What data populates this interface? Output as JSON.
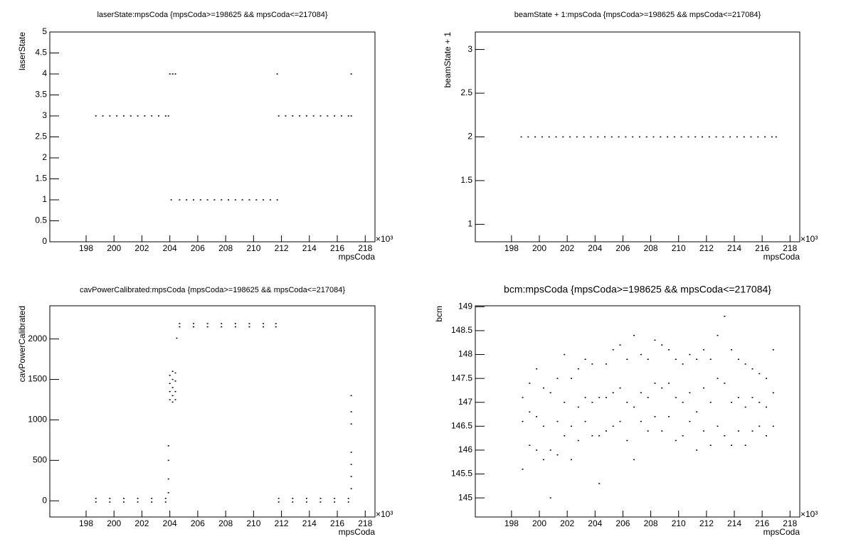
{
  "chart_data": [
    {
      "type": "scatter",
      "title": "laserState:mpsCoda {mpsCoda>=198625 && mpsCoda<=217084}",
      "x_label": "mpsCoda",
      "y_label": "laserState",
      "x_exponent_label": "×10³",
      "color": "#000000",
      "xlim": [
        195.4,
        218.7
      ],
      "ylim": [
        0,
        5
      ],
      "xticks": [
        198,
        200,
        202,
        204,
        206,
        208,
        210,
        212,
        214,
        216,
        218
      ],
      "yticks": [
        0,
        0.5,
        1,
        1.5,
        2,
        2.5,
        3,
        3.5,
        4,
        4.5,
        5
      ],
      "x": [
        198.7,
        199.2,
        199.7,
        200.2,
        200.7,
        201.2,
        201.7,
        202.2,
        202.7,
        203.2,
        203.7,
        203.9,
        204.0,
        204.2,
        204.4,
        204.1,
        204.7,
        205.2,
        205.7,
        206.2,
        206.7,
        207.2,
        207.7,
        208.2,
        208.7,
        209.2,
        209.7,
        210.2,
        210.7,
        211.2,
        211.7,
        211.8,
        212.3,
        212.8,
        213.3,
        213.8,
        214.3,
        214.8,
        215.3,
        215.8,
        216.3,
        216.8,
        217.0,
        211.7,
        217.0
      ],
      "y": [
        3,
        3,
        3,
        3,
        3,
        3,
        3,
        3,
        3,
        3,
        3,
        3,
        4,
        4,
        4,
        1,
        1,
        1,
        1,
        1,
        1,
        1,
        1,
        1,
        1,
        1,
        1,
        1,
        1,
        1,
        1,
        3,
        3,
        3,
        3,
        3,
        3,
        3,
        3,
        3,
        3,
        3,
        3,
        4,
        4
      ]
    },
    {
      "type": "scatter",
      "title": "beamState + 1:mpsCoda {mpsCoda>=198625 && mpsCoda<=217084}",
      "x_label": "mpsCoda",
      "y_label": "beamState + 1",
      "x_exponent_label": "×10³",
      "color": "#000000",
      "xlim": [
        195.4,
        218.7
      ],
      "ylim": [
        0.8,
        3.2
      ],
      "xticks": [
        198,
        200,
        202,
        204,
        206,
        208,
        210,
        212,
        214,
        216,
        218
      ],
      "yticks": [
        1,
        1.5,
        2,
        2.5,
        3
      ],
      "x": [
        198.7,
        199.2,
        199.7,
        200.2,
        200.7,
        201.2,
        201.7,
        202.2,
        202.7,
        203.2,
        203.7,
        204.2,
        204.7,
        205.2,
        205.7,
        206.2,
        206.7,
        207.2,
        207.7,
        208.2,
        208.7,
        209.2,
        209.7,
        210.2,
        210.7,
        211.2,
        211.7,
        212.2,
        212.7,
        213.2,
        213.7,
        214.2,
        214.7,
        215.2,
        215.7,
        216.2,
        216.7,
        217.0
      ],
      "y": [
        2,
        2,
        2,
        2,
        2,
        2,
        2,
        2,
        2,
        2,
        2,
        2,
        2,
        2,
        2,
        2,
        2,
        2,
        2,
        2,
        2,
        2,
        2,
        2,
        2,
        2,
        2,
        2,
        2,
        2,
        2,
        2,
        2,
        2,
        2,
        2,
        2,
        2
      ]
    },
    {
      "type": "scatter",
      "title": "cavPowerCalibrated:mpsCoda {mpsCoda>=198625 && mpsCoda<=217084}",
      "x_label": "mpsCoda",
      "y_label": "cavPowerCalibrated",
      "x_exponent_label": "×10³",
      "color": "#000000",
      "xlim": [
        195.4,
        218.7
      ],
      "ylim": [
        -200,
        2410
      ],
      "xticks": [
        198,
        200,
        202,
        204,
        206,
        208,
        210,
        212,
        214,
        216,
        218
      ],
      "yticks": [
        0,
        500,
        1000,
        1500,
        2000
      ],
      "x": [
        198.7,
        199.7,
        200.7,
        201.7,
        202.7,
        203.7,
        198.7,
        199.7,
        200.7,
        201.7,
        202.7,
        203.7,
        203.9,
        203.9,
        203.9,
        203.9,
        204.0,
        204.0,
        204.0,
        204.0,
        204.2,
        204.2,
        204.2,
        204.2,
        204.2,
        204.4,
        204.4,
        204.4,
        204.4,
        204.5,
        204.7,
        205.7,
        206.7,
        207.7,
        208.7,
        209.7,
        210.7,
        211.6,
        204.7,
        205.7,
        206.7,
        207.7,
        208.7,
        209.7,
        210.7,
        211.6,
        211.8,
        212.8,
        213.8,
        214.8,
        215.8,
        216.8,
        211.8,
        212.8,
        213.8,
        214.8,
        215.8,
        216.8,
        217.0,
        217.0,
        217.0,
        217.0,
        217.0,
        217.0,
        217.0
      ],
      "y": [
        30,
        30,
        30,
        30,
        30,
        30,
        -15,
        -15,
        -15,
        -15,
        -15,
        -15,
        100,
        270,
        500,
        680,
        1250,
        1350,
        1450,
        1550,
        1220,
        1300,
        1400,
        1500,
        1600,
        1250,
        1350,
        1480,
        1580,
        2010,
        2150,
        2150,
        2150,
        2150,
        2150,
        2150,
        2150,
        2150,
        2190,
        2190,
        2190,
        2190,
        2190,
        2190,
        2190,
        2190,
        30,
        30,
        30,
        30,
        30,
        30,
        -15,
        -15,
        -15,
        -15,
        -15,
        -15,
        150,
        300,
        450,
        600,
        950,
        1100,
        1300
      ]
    },
    {
      "type": "scatter",
      "title": "bcm:mpsCoda {mpsCoda>=198625 && mpsCoda<=217084}",
      "x_label": "mpsCoda",
      "y_label": "bcm",
      "x_exponent_label": "×10³",
      "color": "#000000",
      "xlim": [
        195.4,
        218.7
      ],
      "ylim": [
        144.6,
        149.02
      ],
      "xticks": [
        198,
        200,
        202,
        204,
        206,
        208,
        210,
        212,
        214,
        216,
        218
      ],
      "yticks": [
        145,
        145.5,
        146,
        146.5,
        147,
        147.5,
        148,
        148.5,
        149
      ],
      "x": [
        198.8,
        198.8,
        198.8,
        199.3,
        199.3,
        199.3,
        199.8,
        199.8,
        199.8,
        200.3,
        200.3,
        200.3,
        200.8,
        200.8,
        200.8,
        201.3,
        201.3,
        201.3,
        201.8,
        201.8,
        201.8,
        202.3,
        202.3,
        202.3,
        202.8,
        202.8,
        202.8,
        203.3,
        203.3,
        203.3,
        203.8,
        203.8,
        203.8,
        204.3,
        204.3,
        204.3,
        204.8,
        204.8,
        204.8,
        205.3,
        205.3,
        205.3,
        205.8,
        205.8,
        205.8,
        206.3,
        206.3,
        206.3,
        206.8,
        206.8,
        206.8,
        207.3,
        207.3,
        207.3,
        207.8,
        207.8,
        207.8,
        208.3,
        208.3,
        208.3,
        208.8,
        208.8,
        208.8,
        209.3,
        209.3,
        209.3,
        209.8,
        209.8,
        209.8,
        210.3,
        210.3,
        210.3,
        210.8,
        210.8,
        210.8,
        211.3,
        211.3,
        211.3,
        211.8,
        211.8,
        211.8,
        212.3,
        212.3,
        212.3,
        212.8,
        212.8,
        212.8,
        213.3,
        213.3,
        213.3,
        213.8,
        213.8,
        213.8,
        214.3,
        214.3,
        214.3,
        214.8,
        214.8,
        214.8,
        215.3,
        215.3,
        215.3,
        215.8,
        215.8,
        215.8,
        216.3,
        216.3,
        216.3,
        216.8,
        216.8,
        216.8
      ],
      "y": [
        145.6,
        146.6,
        147.1,
        146.1,
        146.8,
        147.4,
        146.0,
        146.7,
        147.7,
        145.8,
        146.5,
        147.3,
        145.0,
        146.0,
        147.2,
        145.9,
        146.6,
        147.5,
        146.3,
        147.0,
        148.0,
        145.8,
        146.5,
        147.5,
        146.2,
        146.9,
        147.7,
        146.6,
        147.1,
        147.9,
        146.3,
        147.0,
        147.8,
        145.3,
        146.3,
        147.1,
        146.4,
        147.1,
        147.8,
        146.5,
        147.2,
        148.1,
        146.6,
        147.3,
        148.2,
        146.2,
        147.0,
        147.9,
        145.8,
        146.9,
        148.4,
        146.6,
        147.2,
        148.0,
        146.4,
        147.1,
        147.9,
        146.7,
        147.4,
        148.3,
        146.4,
        147.3,
        148.2,
        146.7,
        147.4,
        148.1,
        146.2,
        147.1,
        147.9,
        146.3,
        147.0,
        147.8,
        146.6,
        147.2,
        148.0,
        146.0,
        146.8,
        147.9,
        146.4,
        147.3,
        148.1,
        146.1,
        147.0,
        147.9,
        146.5,
        147.5,
        148.4,
        146.3,
        147.4,
        148.8,
        146.1,
        147.0,
        148.1,
        146.4,
        147.1,
        147.9,
        146.1,
        146.9,
        147.8,
        146.4,
        147.1,
        147.7,
        146.5,
        147.0,
        147.6,
        146.3,
        146.9,
        147.5,
        146.5,
        147.2,
        148.1
      ]
    }
  ]
}
